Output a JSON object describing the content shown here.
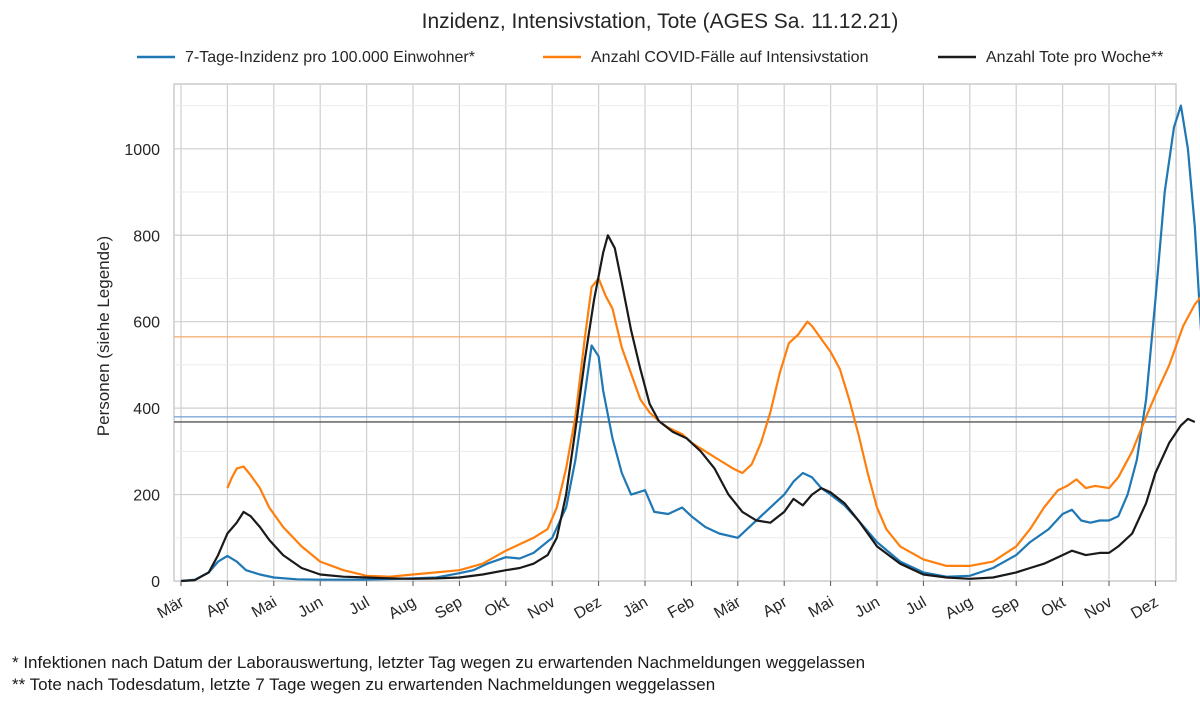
{
  "chart_data": {
    "type": "line",
    "title": "Inzidenz, Intensivstation, Tote (AGES Sa. 11.12.21)",
    "xlabel": "",
    "ylabel": "Personen (siehe Legende)",
    "x_tick_labels": [
      "Mär",
      "Apr",
      "Mai",
      "Jun",
      "Jul",
      "Aug",
      "Sep",
      "Okt",
      "Nov",
      "Dez",
      "Jän",
      "Feb",
      "Mär",
      "Apr",
      "Mai",
      "Jun",
      "Jul",
      "Aug",
      "Sep",
      "Okt",
      "Nov",
      "Dez"
    ],
    "x_range_months": [
      2020.0,
      "2020-03 … 2021-12"
    ],
    "ylim": [
      0,
      1150
    ],
    "y_ticks": [
      0,
      200,
      400,
      600,
      800,
      1000
    ],
    "grid": true,
    "legend_position": "top",
    "series": [
      {
        "name": "7-Tage-Inzidenz pro 100.000 Einwohner*",
        "color": "#1f77b4",
        "reference_line": 380,
        "points": [
          [
            0,
            0
          ],
          [
            0.3,
            3
          ],
          [
            0.6,
            20
          ],
          [
            0.8,
            45
          ],
          [
            1.0,
            58
          ],
          [
            1.2,
            45
          ],
          [
            1.4,
            25
          ],
          [
            1.7,
            15
          ],
          [
            2.0,
            8
          ],
          [
            2.5,
            4
          ],
          [
            3,
            3
          ],
          [
            4,
            3
          ],
          [
            5,
            6
          ],
          [
            5.5,
            8
          ],
          [
            6,
            18
          ],
          [
            6.3,
            25
          ],
          [
            6.6,
            40
          ],
          [
            7,
            55
          ],
          [
            7.3,
            52
          ],
          [
            7.6,
            65
          ],
          [
            8,
            100
          ],
          [
            8.3,
            170
          ],
          [
            8.5,
            280
          ],
          [
            8.7,
            430
          ],
          [
            8.85,
            545
          ],
          [
            9.0,
            520
          ],
          [
            9.1,
            440
          ],
          [
            9.3,
            330
          ],
          [
            9.5,
            250
          ],
          [
            9.7,
            200
          ],
          [
            10.0,
            210
          ],
          [
            10.2,
            160
          ],
          [
            10.5,
            155
          ],
          [
            10.8,
            170
          ],
          [
            11.0,
            150
          ],
          [
            11.3,
            125
          ],
          [
            11.6,
            110
          ],
          [
            12.0,
            100
          ],
          [
            12.3,
            130
          ],
          [
            12.6,
            160
          ],
          [
            13.0,
            200
          ],
          [
            13.2,
            230
          ],
          [
            13.4,
            250
          ],
          [
            13.6,
            240
          ],
          [
            13.8,
            215
          ],
          [
            14.0,
            200
          ],
          [
            14.3,
            175
          ],
          [
            14.6,
            140
          ],
          [
            15.0,
            90
          ],
          [
            15.5,
            45
          ],
          [
            16.0,
            20
          ],
          [
            16.5,
            10
          ],
          [
            17.0,
            12
          ],
          [
            17.5,
            30
          ],
          [
            18.0,
            60
          ],
          [
            18.3,
            90
          ],
          [
            18.7,
            120
          ],
          [
            19.0,
            155
          ],
          [
            19.2,
            165
          ],
          [
            19.4,
            140
          ],
          [
            19.6,
            135
          ],
          [
            19.8,
            140
          ],
          [
            20.0,
            140
          ],
          [
            20.2,
            150
          ],
          [
            20.4,
            200
          ],
          [
            20.6,
            280
          ],
          [
            20.8,
            420
          ],
          [
            21.0,
            650
          ],
          [
            21.2,
            900
          ],
          [
            21.4,
            1050
          ],
          [
            21.55,
            1100
          ],
          [
            21.7,
            1000
          ],
          [
            21.85,
            820
          ],
          [
            22.0,
            550
          ],
          [
            22.15,
            380
          ]
        ]
      },
      {
        "name": "Anzahl COVID-Fälle auf Intensivstation",
        "color": "#ff7f0e",
        "reference_line": 565,
        "points": [
          [
            1.0,
            215
          ],
          [
            1.1,
            240
          ],
          [
            1.2,
            260
          ],
          [
            1.35,
            265
          ],
          [
            1.5,
            245
          ],
          [
            1.7,
            215
          ],
          [
            1.9,
            170
          ],
          [
            2.2,
            125
          ],
          [
            2.6,
            80
          ],
          [
            3.0,
            45
          ],
          [
            3.5,
            25
          ],
          [
            4,
            12
          ],
          [
            4.5,
            10
          ],
          [
            5,
            15
          ],
          [
            5.5,
            20
          ],
          [
            6,
            25
          ],
          [
            6.5,
            40
          ],
          [
            7,
            70
          ],
          [
            7.3,
            85
          ],
          [
            7.6,
            100
          ],
          [
            7.9,
            120
          ],
          [
            8.1,
            170
          ],
          [
            8.3,
            260
          ],
          [
            8.5,
            380
          ],
          [
            8.7,
            560
          ],
          [
            8.85,
            680
          ],
          [
            9.0,
            700
          ],
          [
            9.15,
            660
          ],
          [
            9.3,
            630
          ],
          [
            9.5,
            540
          ],
          [
            9.7,
            480
          ],
          [
            9.9,
            420
          ],
          [
            10.1,
            390
          ],
          [
            10.3,
            370
          ],
          [
            10.5,
            355
          ],
          [
            10.8,
            340
          ],
          [
            11.0,
            320
          ],
          [
            11.3,
            300
          ],
          [
            11.6,
            280
          ],
          [
            11.9,
            260
          ],
          [
            12.1,
            250
          ],
          [
            12.3,
            270
          ],
          [
            12.5,
            320
          ],
          [
            12.7,
            390
          ],
          [
            12.9,
            480
          ],
          [
            13.1,
            550
          ],
          [
            13.3,
            570
          ],
          [
            13.5,
            600
          ],
          [
            13.6,
            590
          ],
          [
            13.8,
            560
          ],
          [
            14.0,
            530
          ],
          [
            14.2,
            490
          ],
          [
            14.4,
            420
          ],
          [
            14.6,
            340
          ],
          [
            14.8,
            250
          ],
          [
            15.0,
            170
          ],
          [
            15.2,
            120
          ],
          [
            15.5,
            80
          ],
          [
            16.0,
            50
          ],
          [
            16.5,
            35
          ],
          [
            17.0,
            35
          ],
          [
            17.5,
            45
          ],
          [
            18.0,
            80
          ],
          [
            18.3,
            120
          ],
          [
            18.6,
            170
          ],
          [
            18.9,
            210
          ],
          [
            19.1,
            220
          ],
          [
            19.3,
            235
          ],
          [
            19.5,
            215
          ],
          [
            19.7,
            220
          ],
          [
            20.0,
            215
          ],
          [
            20.2,
            240
          ],
          [
            20.5,
            300
          ],
          [
            20.8,
            380
          ],
          [
            21.0,
            430
          ],
          [
            21.3,
            500
          ],
          [
            21.6,
            590
          ],
          [
            21.85,
            640
          ],
          [
            22.0,
            660
          ],
          [
            22.1,
            620
          ],
          [
            22.2,
            565
          ]
        ]
      },
      {
        "name": "Anzahl Tote pro Woche**",
        "color": "#1a1a1a",
        "reference_line": 368,
        "points": [
          [
            0,
            0
          ],
          [
            0.3,
            2
          ],
          [
            0.6,
            20
          ],
          [
            0.8,
            60
          ],
          [
            1.0,
            110
          ],
          [
            1.2,
            135
          ],
          [
            1.35,
            160
          ],
          [
            1.5,
            150
          ],
          [
            1.7,
            125
          ],
          [
            1.9,
            95
          ],
          [
            2.2,
            60
          ],
          [
            2.6,
            30
          ],
          [
            3.0,
            15
          ],
          [
            3.5,
            10
          ],
          [
            4,
            8
          ],
          [
            4.5,
            6
          ],
          [
            5,
            5
          ],
          [
            5.5,
            6
          ],
          [
            6,
            8
          ],
          [
            6.5,
            15
          ],
          [
            7,
            25
          ],
          [
            7.3,
            30
          ],
          [
            7.6,
            40
          ],
          [
            7.9,
            60
          ],
          [
            8.1,
            100
          ],
          [
            8.3,
            200
          ],
          [
            8.5,
            350
          ],
          [
            8.7,
            510
          ],
          [
            8.9,
            650
          ],
          [
            9.1,
            760
          ],
          [
            9.2,
            800
          ],
          [
            9.35,
            770
          ],
          [
            9.5,
            690
          ],
          [
            9.7,
            580
          ],
          [
            9.9,
            490
          ],
          [
            10.1,
            410
          ],
          [
            10.3,
            370
          ],
          [
            10.6,
            345
          ],
          [
            10.9,
            330
          ],
          [
            11.2,
            300
          ],
          [
            11.5,
            260
          ],
          [
            11.8,
            200
          ],
          [
            12.1,
            160
          ],
          [
            12.4,
            140
          ],
          [
            12.7,
            135
          ],
          [
            13.0,
            160
          ],
          [
            13.2,
            190
          ],
          [
            13.4,
            175
          ],
          [
            13.6,
            200
          ],
          [
            13.8,
            215
          ],
          [
            14.0,
            205
          ],
          [
            14.3,
            180
          ],
          [
            14.6,
            140
          ],
          [
            15.0,
            80
          ],
          [
            15.5,
            40
          ],
          [
            16.0,
            15
          ],
          [
            16.5,
            8
          ],
          [
            17.0,
            5
          ],
          [
            17.5,
            8
          ],
          [
            18.0,
            20
          ],
          [
            18.3,
            30
          ],
          [
            18.6,
            40
          ],
          [
            18.9,
            55
          ],
          [
            19.2,
            70
          ],
          [
            19.5,
            60
          ],
          [
            19.8,
            65
          ],
          [
            20.0,
            65
          ],
          [
            20.2,
            80
          ],
          [
            20.5,
            110
          ],
          [
            20.8,
            180
          ],
          [
            21.0,
            250
          ],
          [
            21.3,
            320
          ],
          [
            21.55,
            360
          ],
          [
            21.7,
            375
          ],
          [
            21.85,
            368
          ]
        ]
      }
    ]
  },
  "footnotes": [
    "* Infektionen nach Datum der Laborauswertung, letzter Tag wegen zu erwartenden Nachmeldungen weggelassen",
    "** Tote nach Todesdatum, letzte 7 Tage wegen zu erwartenden Nachmeldungen weggelassen"
  ]
}
